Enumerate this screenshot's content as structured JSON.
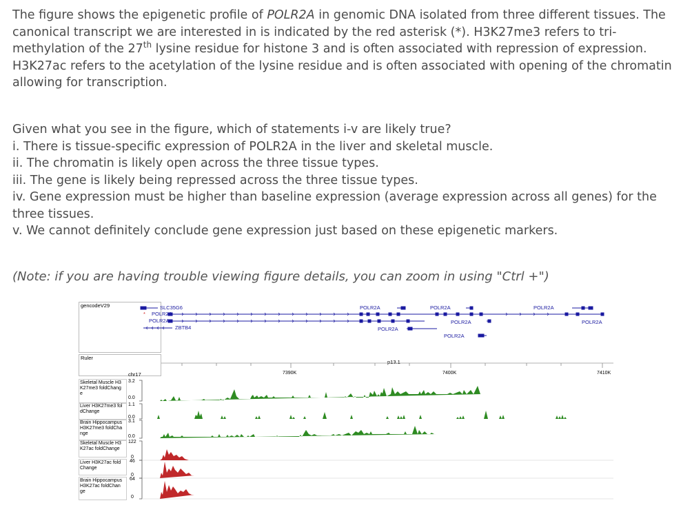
{
  "intro": {
    "line1": "The figure shows the epigenetic profile of ",
    "gene": "POLR2A",
    "line1b": " in genomic DNA isolated from three different tissues. The canonical transcript we are interested in is indicated by the red asterisk (*). H3K27me3 refers to tri-methylation of the 27",
    "sup": "th",
    "line1c": " lysine residue for histone 3 and is often associated with repression of expression. H3K27ac refers to the acetylation of the lysine residue and is often associated with opening of the chromatin allowing for transcription."
  },
  "question": {
    "prompt": "Given what you see in the figure, which of  statements i-v are likely true?",
    "statements": [
      "i. There is tissue-specific expression of POLR2A in the liver and skeletal muscle.",
      "ii. The chromatin is likely open across the three tissue types.",
      "iii. The gene is likely being repressed across the three tissue types.",
      "iv. Gene expression must be higher than baseline expression (average expression across all genes) for the three tissues.",
      "v. We cannot definitely conclude gene expression just based on these epigenetic markers."
    ]
  },
  "note": "(Note: if you are having trouble viewing figure details, you can zoom in using \"Ctrl +\")",
  "figure": {
    "gencode_label": "gencodeV29",
    "genes": {
      "slc": "SLC35G6",
      "star": "*",
      "p1": "POLR2A",
      "p2": "POLR2A",
      "zbtb": "ZBTB4",
      "t1": "POLR2A",
      "t2": "POLR2A",
      "t3": "POLR2A",
      "t4": "POLR2A",
      "t5": "POLR2A",
      "t6": "POLR2A",
      "t7": "POLR2A",
      "t8": "POLR2A"
    },
    "ruler_label": "Ruler",
    "band": "p13.1",
    "chrom": "chr17",
    "ticks": [
      "7390K",
      "7400K",
      "7410K"
    ],
    "tracks": [
      {
        "label": "Skeletal Muscle H3\nK27me3 foldChang\ne",
        "max": "3.2",
        "min": "0.0"
      },
      {
        "label": "Liver H3K27me3 fol\ndChange",
        "max": "1.1",
        "min": "0.0"
      },
      {
        "label": "Brain Hippocampus\nH3K27me3 foldCha\nnge",
        "max": "3.1",
        "min": "0.0"
      },
      {
        "label": "Skeletal Muscle H3\nK27ac foldChange",
        "max": "122",
        "min": "0"
      },
      {
        "label": "Liver H3K27ac fold\nChange",
        "max": "46",
        "min": "0"
      },
      {
        "label": "Brain Hippocampus\nH3K27ac foldChan\nge",
        "max": "64",
        "min": "0"
      }
    ],
    "colors": {
      "me3": "#2e8b22",
      "ac": "#c0282a",
      "gene": "#1a1aa0",
      "star": "#d42020"
    }
  }
}
